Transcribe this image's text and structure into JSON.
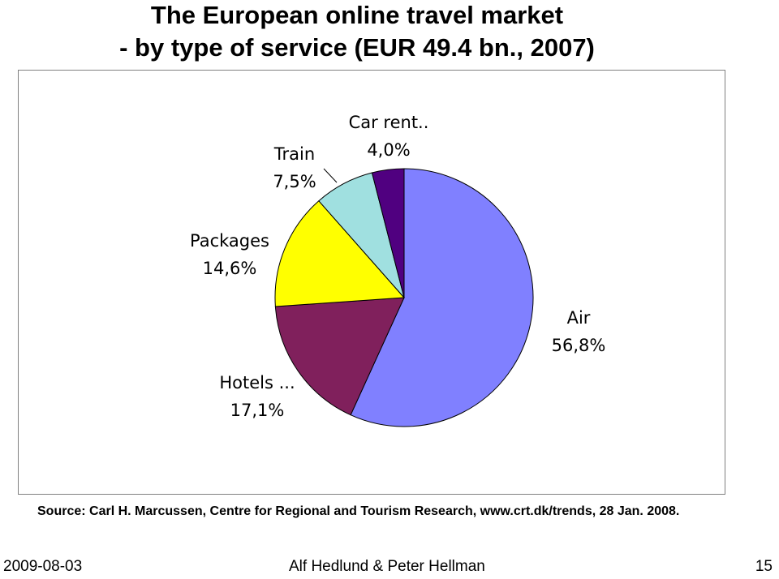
{
  "title": {
    "line1": "The European online travel market",
    "line2": "- by type of service (EUR 49.4 bn., 2007)"
  },
  "chart_data": {
    "type": "pie",
    "slices": [
      {
        "label": "Air",
        "value_label": "56,8%",
        "value": 56.8,
        "color": "#8080ff"
      },
      {
        "label": "Hotels ...",
        "value_label": "17,1%",
        "value": 17.1,
        "color": "#80205c"
      },
      {
        "label": "Packages",
        "value_label": "14,6%",
        "value": 14.6,
        "color": "#ffff00"
      },
      {
        "label": "Train",
        "value_label": "7,5%",
        "value": 7.5,
        "color": "#a0e0e0"
      },
      {
        "label": "Car rent..",
        "value_label": "4,0%",
        "value": 4.0,
        "color": "#500080"
      }
    ],
    "start": "12 o'clock",
    "direction": "clockwise"
  },
  "source": "Source: Carl H. Marcussen, Centre for Regional and Tourism Research, www.crt.dk/trends, 28 Jan. 2008.",
  "footer": {
    "date": "2009-08-03",
    "authors": "Alf Hedlund & Peter Hellman",
    "page": "15"
  }
}
